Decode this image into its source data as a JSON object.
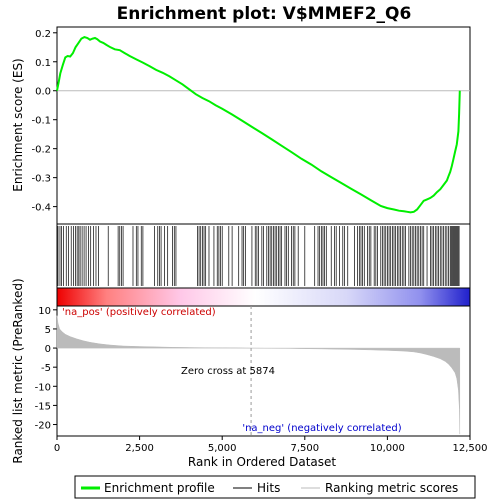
{
  "chart_data": {
    "type": "line",
    "title": "Enrichment plot: V$MMEF2_Q6",
    "xlabel": "Rank in Ordered Dataset",
    "xlim": [
      0,
      12500
    ],
    "xticks": [
      0,
      2500,
      5000,
      7500,
      10000,
      12500
    ],
    "xtick_labels": [
      "0",
      "2,500",
      "5,000",
      "7,500",
      "10,000",
      "12,500"
    ],
    "enrichment": {
      "ylabel": "Enrichment score (ES)",
      "ylim": [
        -0.46,
        0.22
      ],
      "yticks": [
        0.2,
        0.1,
        0.0,
        -0.1,
        -0.2,
        -0.3,
        -0.4
      ],
      "ytick_labels": [
        "0.2",
        "0.1",
        "0.0",
        "-0.1",
        "-0.2",
        "-0.3",
        "-0.4"
      ],
      "series": [
        {
          "name": "Enrichment profile",
          "color": "#00ee00",
          "x": [
            0,
            50,
            100,
            180,
            250,
            320,
            400,
            480,
            560,
            650,
            740,
            830,
            920,
            1000,
            1080,
            1150,
            1220,
            1300,
            1400,
            1500,
            1620,
            1750,
            1900,
            2050,
            2200,
            2400,
            2600,
            2800,
            3000,
            3200,
            3400,
            3600,
            3800,
            4000,
            4200,
            4400,
            4600,
            4800,
            5000,
            5300,
            5600,
            5900,
            6200,
            6500,
            6800,
            7100,
            7400,
            7700,
            8000,
            8300,
            8600,
            8900,
            9200,
            9500,
            9800,
            10000,
            10200,
            10350,
            10500,
            10600,
            10700,
            10800,
            10900,
            11000,
            11100,
            11200,
            11300,
            11400,
            11500,
            11600,
            11700,
            11800,
            11850,
            11900,
            11950,
            12000,
            12050,
            12100,
            12150,
            12170,
            12190
          ],
          "y": [
            0.0,
            0.03,
            0.06,
            0.09,
            0.115,
            0.12,
            0.118,
            0.13,
            0.15,
            0.165,
            0.18,
            0.185,
            0.182,
            0.176,
            0.18,
            0.182,
            0.178,
            0.17,
            0.165,
            0.158,
            0.15,
            0.143,
            0.14,
            0.13,
            0.12,
            0.108,
            0.097,
            0.085,
            0.072,
            0.062,
            0.05,
            0.036,
            0.022,
            0.005,
            -0.012,
            -0.025,
            -0.036,
            -0.05,
            -0.062,
            -0.082,
            -0.103,
            -0.125,
            -0.146,
            -0.168,
            -0.19,
            -0.212,
            -0.235,
            -0.255,
            -0.278,
            -0.298,
            -0.318,
            -0.338,
            -0.358,
            -0.378,
            -0.398,
            -0.405,
            -0.41,
            -0.414,
            -0.416,
            -0.418,
            -0.42,
            -0.418,
            -0.41,
            -0.395,
            -0.38,
            -0.375,
            -0.37,
            -0.362,
            -0.35,
            -0.34,
            -0.325,
            -0.31,
            -0.295,
            -0.28,
            -0.26,
            -0.235,
            -0.21,
            -0.185,
            -0.14,
            -0.08,
            0.0
          ]
        }
      ],
      "hits": [
        30,
        90,
        140,
        200,
        280,
        350,
        430,
        500,
        560,
        610,
        660,
        700,
        760,
        820,
        880,
        950,
        1020,
        1100,
        1180,
        1260,
        1550,
        1850,
        1900,
        1950,
        2000,
        2300,
        2400,
        2450,
        2550,
        2600,
        2950,
        3050,
        3100,
        3150,
        3250,
        3350,
        3500,
        3550,
        3600,
        4250,
        4300,
        4350,
        4400,
        4450,
        4500,
        4600,
        4750,
        4850,
        4900,
        4950,
        5000,
        5200,
        5300,
        5500,
        5600,
        5650,
        5700,
        5900,
        6000,
        6050,
        6100,
        6200,
        6250,
        6350,
        6400,
        6450,
        6500,
        6550,
        6600,
        6650,
        6700,
        6750,
        6800,
        6900,
        6950,
        7000,
        7100,
        7150,
        7200,
        7300,
        7500,
        7800,
        7900,
        7950,
        8000,
        8050,
        8100,
        8150,
        8300,
        8400,
        8450,
        8550,
        8650,
        8700,
        8800,
        9000,
        9100,
        9150,
        9200,
        9250,
        9300,
        9400,
        9450,
        9500,
        9600,
        9650,
        9700,
        9800,
        9850,
        9900,
        9950,
        10000,
        10050,
        10100,
        10150,
        10200,
        10250,
        10300,
        10350,
        10400,
        10450,
        10500,
        10550,
        10650,
        10700,
        10750,
        10800,
        10850,
        10900,
        10950,
        11000,
        11050,
        11100,
        11200,
        11300,
        11350,
        11400,
        11450,
        11500,
        11550,
        11600,
        11650,
        11700,
        11750,
        11800,
        11850,
        11900,
        11930,
        11960,
        11990,
        12020,
        12050,
        12080,
        12110,
        12140,
        12170
      ]
    },
    "ranking_bar": {
      "gradient_colors": [
        "#ee0000",
        "#ff8080",
        "#ffc8e8",
        "#ffffff",
        "#d8d8f8",
        "#9090ee",
        "#2020cc"
      ]
    },
    "ranked_metric": {
      "ylabel": "Ranked list metric (PreRanked)",
      "ylim": [
        -23,
        11
      ],
      "yticks": [
        10,
        5,
        0,
        -5,
        -10,
        -15,
        -20
      ],
      "ytick_labels": [
        "10",
        "5",
        "0",
        "-5",
        "-10",
        "-15",
        "-20"
      ],
      "x": [
        0,
        30,
        80,
        150,
        250,
        400,
        600,
        800,
        1000,
        1300,
        1600,
        2000,
        2500,
        3000,
        3500,
        4000,
        4500,
        5000,
        5500,
        5874,
        6500,
        7000,
        7500,
        8000,
        8500,
        9000,
        9500,
        10000,
        10500,
        10800,
        11000,
        11200,
        11400,
        11600,
        11750,
        11850,
        11950,
        12050,
        12100,
        12150,
        12180,
        12190
      ],
      "y": [
        8.5,
        6.5,
        5.0,
        4.3,
        3.6,
        3.0,
        2.4,
        1.9,
        1.5,
        1.1,
        0.8,
        0.55,
        0.4,
        0.3,
        0.2,
        0.15,
        0.1,
        0.06,
        0.03,
        0.0,
        -0.06,
        -0.1,
        -0.16,
        -0.22,
        -0.3,
        -0.38,
        -0.48,
        -0.6,
        -0.8,
        -1.0,
        -1.3,
        -1.7,
        -2.2,
        -2.8,
        -3.5,
        -4.2,
        -5.2,
        -6.5,
        -8.0,
        -11.0,
        -16.0,
        -22.5
      ],
      "zero_cross": 5874,
      "zero_cross_label": "Zero cross at 5874",
      "pos_label": "'na_pos' (positively correlated)",
      "neg_label": "'na_neg' (negatively correlated)"
    },
    "legend": {
      "placement": "bottom",
      "entries": [
        {
          "label": "Enrichment profile",
          "color": "#00ee00",
          "kind": "thick-line"
        },
        {
          "label": "Hits",
          "color": "#000000",
          "kind": "line"
        },
        {
          "label": "Ranking metric scores",
          "color": "#bbbbbb",
          "kind": "line"
        }
      ]
    }
  }
}
